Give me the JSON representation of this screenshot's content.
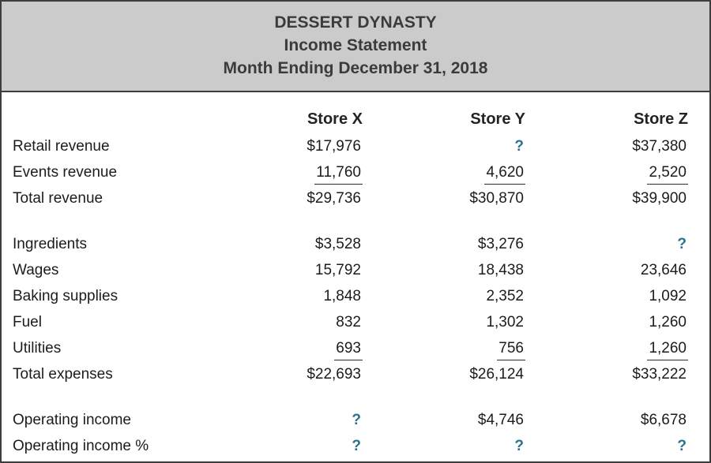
{
  "header": {
    "company": "DESSERT DYNASTY",
    "title": "Income Statement",
    "period": "Month Ending December 31, 2018"
  },
  "colors": {
    "header_background": "#cbcbcb",
    "border": "#3d3d3d",
    "unknown_value": "#2d7191",
    "text": "#1c1c1c"
  },
  "table": {
    "columns": [
      "Store X",
      "Store Y",
      "Store Z"
    ],
    "rows": [
      {
        "label": "Retail revenue",
        "cells": [
          {
            "text": "$17,976"
          },
          {
            "text": "?",
            "unknown": true
          },
          {
            "text": "$37,380"
          }
        ]
      },
      {
        "label": "Events revenue",
        "cells": [
          {
            "text": "11,760",
            "underline": true
          },
          {
            "text": "4,620",
            "underline": true
          },
          {
            "text": "2,520",
            "underline": true
          }
        ]
      },
      {
        "label": "Total revenue",
        "spacer_after": true,
        "cells": [
          {
            "text": "$29,736"
          },
          {
            "text": "$30,870"
          },
          {
            "text": "$39,900"
          }
        ]
      },
      {
        "label": "Ingredients",
        "cells": [
          {
            "text": "$3,528"
          },
          {
            "text": "$3,276"
          },
          {
            "text": "?",
            "unknown": true
          }
        ]
      },
      {
        "label": "Wages",
        "cells": [
          {
            "text": "15,792"
          },
          {
            "text": "18,438"
          },
          {
            "text": "23,646"
          }
        ]
      },
      {
        "label": "Baking supplies",
        "cells": [
          {
            "text": "1,848"
          },
          {
            "text": "2,352"
          },
          {
            "text": "1,092"
          }
        ]
      },
      {
        "label": "Fuel",
        "cells": [
          {
            "text": "832"
          },
          {
            "text": "1,302"
          },
          {
            "text": "1,260"
          }
        ]
      },
      {
        "label": "Utilities",
        "cells": [
          {
            "text": "693",
            "underline": true
          },
          {
            "text": "756",
            "underline": true
          },
          {
            "text": "1,260",
            "underline": true
          }
        ]
      },
      {
        "label": "Total expenses",
        "spacer_after": true,
        "cells": [
          {
            "text": "$22,693"
          },
          {
            "text": "$26,124"
          },
          {
            "text": "$33,222"
          }
        ]
      },
      {
        "label": "Operating income",
        "cells": [
          {
            "text": "?",
            "unknown": true
          },
          {
            "text": "$4,746"
          },
          {
            "text": "$6,678"
          }
        ]
      },
      {
        "label": "Operating income %",
        "cells": [
          {
            "text": "?",
            "unknown": true
          },
          {
            "text": "?",
            "unknown": true
          },
          {
            "text": "?",
            "unknown": true
          }
        ]
      }
    ]
  }
}
